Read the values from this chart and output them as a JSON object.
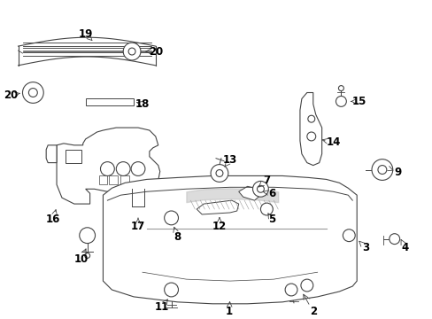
{
  "background_color": "#ffffff",
  "line_color": "#444444",
  "label_color": "#000000",
  "fig_width": 4.89,
  "fig_height": 3.6,
  "dpi": 100
}
